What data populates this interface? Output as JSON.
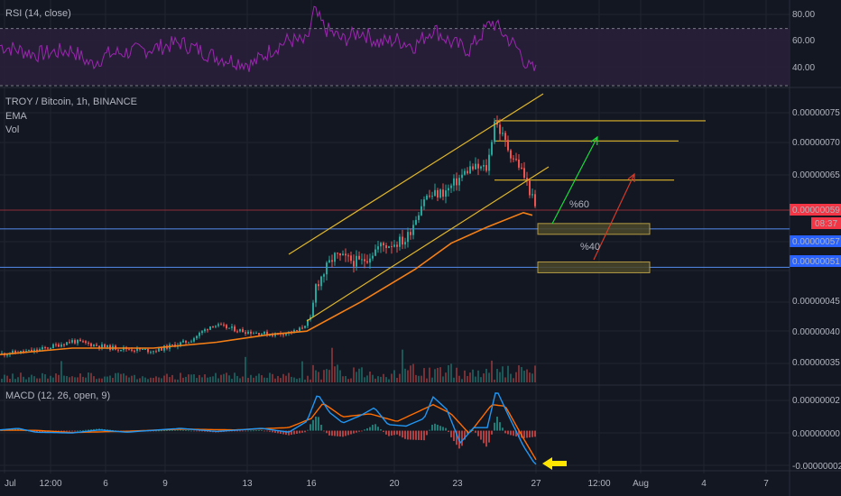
{
  "colors": {
    "background": "#131722",
    "grid": "#1f2430",
    "axis_text": "#b2b5be",
    "candle_up": "#26a69a",
    "candle_down": "#ef5350",
    "ema": "#f57f17",
    "rsi_line": "#9c27b0",
    "rsi_band": "#2a1e3b",
    "channel": "#e0b62b",
    "support_line": "#4e7fd6",
    "price_tag_red": "#f23645",
    "price_tag_blue": "#2962ff",
    "arrow_up": "#19d93c",
    "arrow_down": "#d23a2a",
    "zone_fill": "#4a4628",
    "zone_border": "#cfb24a",
    "macd_line": "#2196f3",
    "macd_signal": "#ff6d00",
    "pointer_arrow": "#ffe500"
  },
  "rsi": {
    "title": "RSI (14, close)",
    "axis_ticks": [
      "80.00",
      "60.00",
      "40.00"
    ]
  },
  "main": {
    "title": "TROY / Bitcoin, 1h, BINANCE",
    "legend": [
      "EMA",
      "Vol"
    ],
    "axis_ticks": [
      "0.00000075",
      "0.00000070",
      "0.00000065",
      "0.00000045",
      "0.00000040",
      "0.00000035"
    ],
    "tag_last_price": "0.00000059",
    "tag_countdown": "08:37",
    "tag_support_1": "0.00000057",
    "tag_support_2": "0.00000051",
    "annotation_up": "%60",
    "annotation_down": "%40"
  },
  "macd": {
    "title": "MACD (12, 26, open, 9)",
    "axis_ticks": [
      "0.00000002",
      "0.00000000",
      "-0.00000002"
    ]
  },
  "time_axis": [
    "Jul",
    "12:00",
    "6",
    "9",
    "13",
    "16",
    "20",
    "23",
    "27",
    "12:00",
    "Aug",
    "4",
    "7"
  ],
  "chart_data": {
    "type": "candlestick",
    "title": "TROY / Bitcoin, 1h, BINANCE",
    "interval": "1h",
    "x_ticks": [
      "Jul",
      "12:00",
      "6",
      "9",
      "13",
      "16",
      "20",
      "23",
      "27",
      "12:00",
      "Aug",
      "4",
      "7"
    ],
    "price_ylim": [
      3.3e-07,
      7.8e-07
    ],
    "price_path": [
      [
        0,
        3.75e-07
      ],
      [
        40,
        3.8e-07
      ],
      [
        80,
        3.95e-07
      ],
      [
        120,
        3.85e-07
      ],
      [
        170,
        3.8e-07
      ],
      [
        210,
        3.95e-07
      ],
      [
        235,
        4.2e-07
      ],
      [
        270,
        4.1e-07
      ],
      [
        300,
        4.05e-07
      ],
      [
        330,
        4.1e-07
      ],
      [
        345,
        4.3e-07
      ],
      [
        350,
        4.8e-07
      ],
      [
        370,
        5.25e-07
      ],
      [
        400,
        5.15e-07
      ],
      [
        420,
        5.4e-07
      ],
      [
        450,
        5.5e-07
      ],
      [
        470,
        6.15e-07
      ],
      [
        495,
        6.25e-07
      ],
      [
        520,
        6.6e-07
      ],
      [
        540,
        6.6e-07
      ],
      [
        548,
        7.35e-07
      ],
      [
        565,
        6.85e-07
      ],
      [
        575,
        6.65e-07
      ],
      [
        585,
        6.35e-07
      ],
      [
        595,
        5.9e-07
      ]
    ],
    "ema_path": [
      [
        0,
        3.74e-07
      ],
      [
        80,
        3.84e-07
      ],
      [
        170,
        3.84e-07
      ],
      [
        240,
        3.93e-07
      ],
      [
        300,
        4.05e-07
      ],
      [
        340,
        4.1e-07
      ],
      [
        400,
        4.55e-07
      ],
      [
        460,
        5.05e-07
      ],
      [
        500,
        5.45e-07
      ],
      [
        540,
        5.7e-07
      ],
      [
        580,
        5.92e-07
      ],
      [
        590,
        5.88e-07
      ]
    ],
    "horizontal_lines": [
      {
        "value": 7.33e-07,
        "color": "channel"
      },
      {
        "value": 7.02e-07,
        "color": "channel"
      },
      {
        "value": 6.42e-07,
        "color": "channel"
      },
      {
        "value": 5.67e-07,
        "color": "support_line"
      },
      {
        "value": 5.08e-07,
        "color": "support_line"
      }
    ],
    "projections": [
      {
        "label": "%60",
        "direction": "up",
        "to_level": 7e-07
      },
      {
        "label": "%40",
        "direction": "down",
        "to_level": 5.1e-07
      }
    ],
    "rsi_ylim": [
      30,
      90
    ],
    "rsi_levels": [
      70,
      30
    ],
    "rsi_path": [
      [
        0,
        58
      ],
      [
        40,
        52
      ],
      [
        80,
        55
      ],
      [
        100,
        45
      ],
      [
        120,
        52
      ],
      [
        160,
        55
      ],
      [
        200,
        60
      ],
      [
        240,
        50
      ],
      [
        280,
        45
      ],
      [
        300,
        55
      ],
      [
        320,
        62
      ],
      [
        340,
        60
      ],
      [
        348,
        82
      ],
      [
        360,
        70
      ],
      [
        380,
        62
      ],
      [
        400,
        68
      ],
      [
        420,
        60
      ],
      [
        440,
        62
      ],
      [
        460,
        58
      ],
      [
        480,
        70
      ],
      [
        500,
        60
      ],
      [
        520,
        55
      ],
      [
        545,
        75
      ],
      [
        560,
        65
      ],
      [
        575,
        55
      ],
      [
        585,
        43
      ],
      [
        595,
        40
      ]
    ],
    "macd_ylim": [
      -2.5e-08,
      2.8e-08
    ],
    "macd_path": [
      [
        0,
        5e-10
      ],
      [
        20,
        1.5e-09
      ],
      [
        40,
        -1e-09
      ],
      [
        80,
        -1.5e-09
      ],
      [
        110,
        5e-10
      ],
      [
        140,
        -1e-09
      ],
      [
        200,
        1.5e-09
      ],
      [
        240,
        -5e-10
      ],
      [
        290,
        1.5e-09
      ],
      [
        320,
        -1e-09
      ],
      [
        340,
        6e-09
      ],
      [
        352,
        2.4e-08
      ],
      [
        365,
        1.2e-08
      ],
      [
        380,
        5e-09
      ],
      [
        400,
        1e-08
      ],
      [
        415,
        1.5e-08
      ],
      [
        430,
        4e-09
      ],
      [
        450,
        3e-09
      ],
      [
        470,
        8e-09
      ],
      [
        480,
        2.2e-08
      ],
      [
        495,
        1.4e-08
      ],
      [
        510,
        -8e-09
      ],
      [
        525,
        2e-09
      ],
      [
        540,
        2e-09
      ],
      [
        550,
        2.7e-08
      ],
      [
        565,
        8e-09
      ],
      [
        580,
        -1e-08
      ],
      [
        593,
        -2.2e-08
      ]
    ],
    "signal_path": [
      [
        0,
        3e-10
      ],
      [
        40,
        2e-10
      ],
      [
        80,
        -1.2e-09
      ],
      [
        140,
        -4e-10
      ],
      [
        200,
        1e-09
      ],
      [
        260,
        5e-10
      ],
      [
        320,
        2e-09
      ],
      [
        345,
        8e-09
      ],
      [
        358,
        1.8e-08
      ],
      [
        380,
        9e-09
      ],
      [
        410,
        1.1e-08
      ],
      [
        440,
        6e-09
      ],
      [
        480,
        1.7e-08
      ],
      [
        500,
        1.1e-08
      ],
      [
        520,
        -2e-09
      ],
      [
        545,
        1.7e-08
      ],
      [
        560,
        1.6e-08
      ],
      [
        580,
        -5e-09
      ],
      [
        595,
        -2e-08
      ]
    ]
  }
}
